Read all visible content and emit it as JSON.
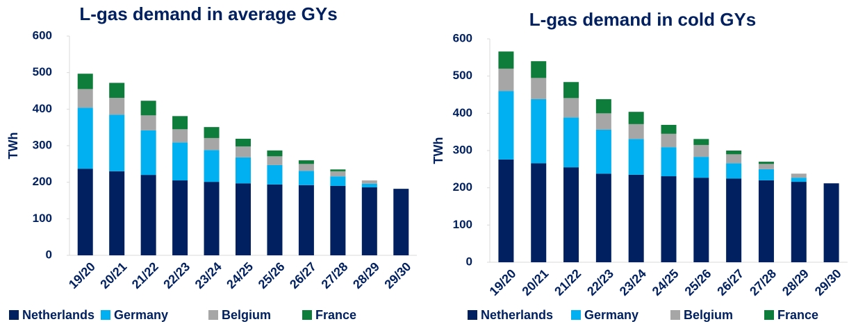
{
  "chart_data": [
    {
      "type": "bar",
      "stacked": true,
      "title": "L-gas demand in average GYs",
      "ylabel": "TWh",
      "categories": [
        "19/20",
        "20/21",
        "21/22",
        "22/23",
        "23/24",
        "24/25",
        "25/26",
        "26/27",
        "27/28",
        "28/29",
        "29/30"
      ],
      "series": [
        {
          "name": "Netherlands",
          "color": "#002060",
          "values": [
            237,
            230,
            220,
            205,
            201,
            197,
            194,
            192,
            190,
            186,
            182
          ]
        },
        {
          "name": "Germany",
          "color": "#00b0f0",
          "values": [
            167,
            155,
            122,
            104,
            87,
            71,
            53,
            39,
            26,
            10,
            0
          ]
        },
        {
          "name": "Belgium",
          "color": "#a6a6a6",
          "values": [
            51,
            46,
            41,
            36,
            33,
            30,
            24,
            19,
            14,
            9,
            0
          ]
        },
        {
          "name": "France",
          "color": "#0e7c3a",
          "values": [
            42,
            41,
            40,
            36,
            30,
            21,
            16,
            10,
            5,
            0,
            0
          ]
        }
      ],
      "ylim": [
        0,
        600
      ],
      "yticks": [
        0,
        100,
        200,
        300,
        400,
        500,
        600
      ]
    },
    {
      "type": "bar",
      "stacked": true,
      "title": "L-gas demand in cold GYs",
      "ylabel": "TWh",
      "categories": [
        "19/20",
        "20/21",
        "21/22",
        "22/23",
        "23/24",
        "24/25",
        "25/26",
        "26/27",
        "27/28",
        "28/29",
        "29/30"
      ],
      "series": [
        {
          "name": "Netherlands",
          "color": "#002060",
          "values": [
            276,
            266,
            255,
            238,
            235,
            231,
            227,
            225,
            220,
            216,
            212
          ]
        },
        {
          "name": "Germany",
          "color": "#00b0f0",
          "values": [
            184,
            172,
            134,
            118,
            96,
            78,
            56,
            41,
            30,
            11,
            0
          ]
        },
        {
          "name": "Belgium",
          "color": "#a6a6a6",
          "values": [
            60,
            57,
            52,
            44,
            40,
            36,
            32,
            24,
            14,
            11,
            0
          ]
        },
        {
          "name": "France",
          "color": "#0e7c3a",
          "values": [
            46,
            45,
            43,
            38,
            33,
            24,
            16,
            10,
            6,
            0,
            0
          ]
        }
      ],
      "ylim": [
        0,
        600
      ],
      "yticks": [
        0,
        100,
        200,
        300,
        400,
        500,
        600
      ]
    }
  ]
}
